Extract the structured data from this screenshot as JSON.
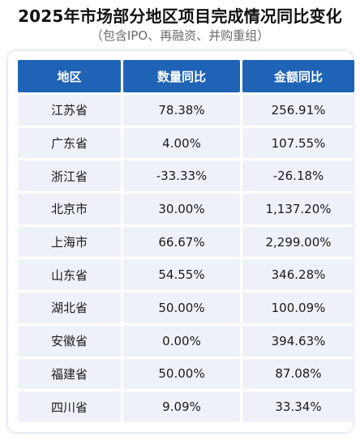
{
  "chart_data": {
    "type": "table",
    "title": "2025年市场部分地区项目完成情况同比变化",
    "subtitle": "（包含IPO、再融资、并购重组）",
    "columns": [
      "地区",
      "数量同比",
      "金额同比"
    ],
    "rows": [
      [
        "江苏省",
        "78.38%",
        "256.91%"
      ],
      [
        "广东省",
        "4.00%",
        "107.55%"
      ],
      [
        "浙江省",
        "-33.33%",
        "-26.18%"
      ],
      [
        "北京市",
        "30.00%",
        "1,137.20%"
      ],
      [
        "上海市",
        "66.67%",
        "2,299.00%"
      ],
      [
        "山东省",
        "54.55%",
        "346.28%"
      ],
      [
        "湖北省",
        "50.00%",
        "100.09%"
      ],
      [
        "安徽省",
        "0.00%",
        "394.63%"
      ],
      [
        "福建省",
        "50.00%",
        "87.08%"
      ],
      [
        "四川省",
        "9.09%",
        "33.34%"
      ]
    ]
  },
  "colors": {
    "header_bg": "#1f63b6",
    "header_text": "#ffffff",
    "cell_bg": "#eef2f8"
  }
}
